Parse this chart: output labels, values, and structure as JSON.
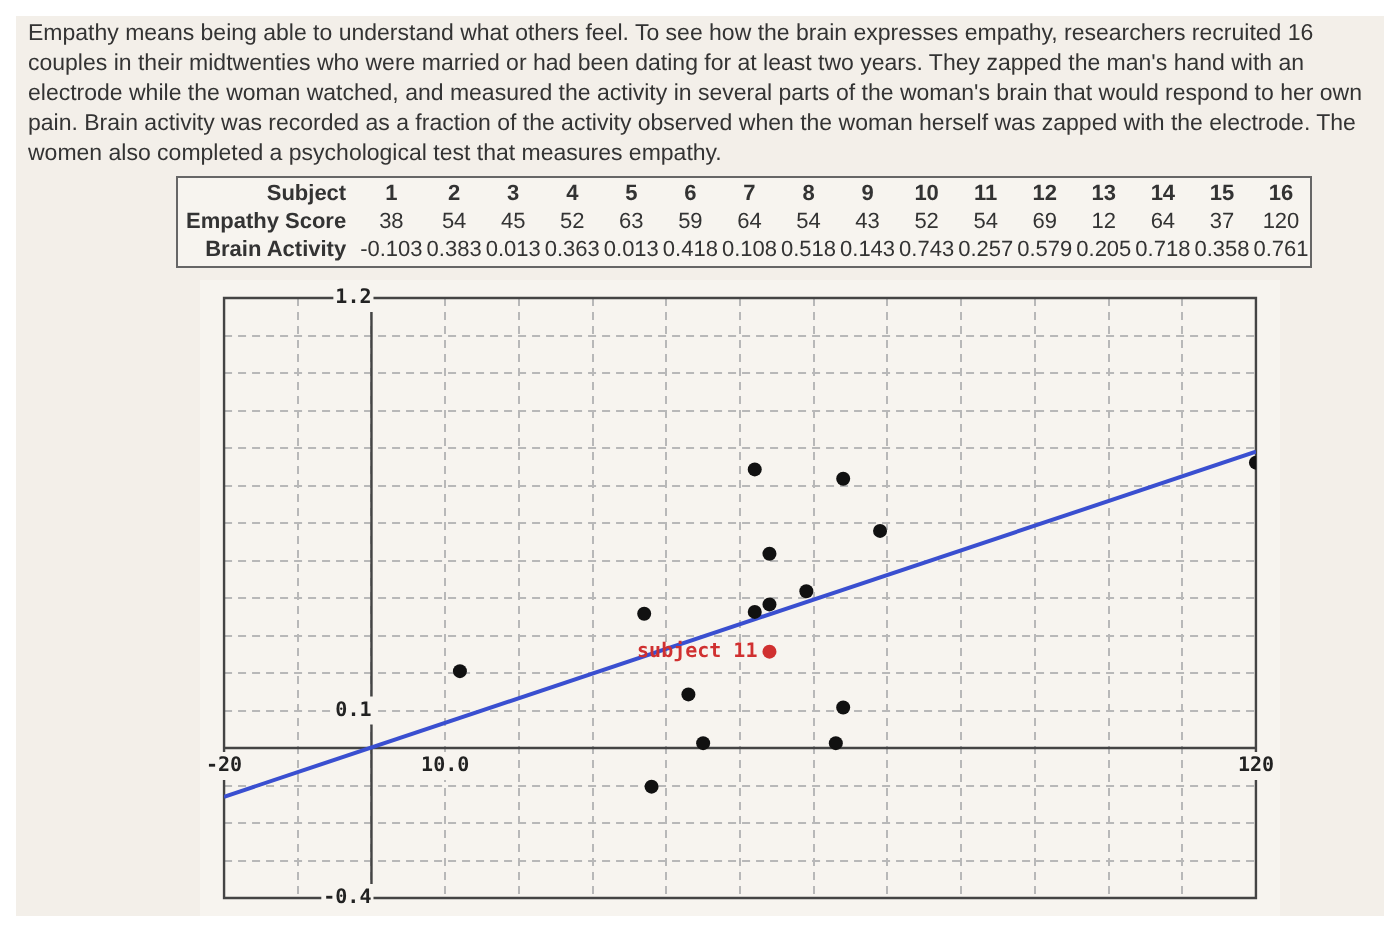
{
  "chart_data": {
    "type": "scatter",
    "subtitle": "Empathy means being able to understand what others feel. To see how the brain expresses empathy, researchers recruited 16 couples in their midtwenties who were married or had been dating for at least two years. They zapped the man's hand with an electrode while the woman watched, and measured the activity in several parts of the woman's brain that would respond to her own pain. Brain activity was recorded as a fraction of the activity observed when the woman herself was zapped with the electrode. The women also completed a psychological test that measures empathy.",
    "series": [
      {
        "colors": [
          "#111111",
          "#111111",
          "#111111",
          "#111111",
          "#111111",
          "#111111",
          "#111111",
          "#111111",
          "#111111",
          "#111111",
          "#d03030",
          "#111111",
          "#111111",
          "#111111",
          "#111111",
          "#111111"
        ],
        "x": [
          38,
          54,
          45,
          52,
          63,
          59,
          64,
          54,
          43,
          52,
          54,
          69,
          12,
          64,
          37,
          120
        ],
        "values": [
          -0.103,
          0.383,
          0.013,
          0.363,
          0.013,
          0.418,
          0.108,
          0.518,
          0.143,
          0.743,
          0.257,
          0.579,
          0.205,
          0.718,
          0.358,
          0.761
        ]
      },
      {
        "type": "line",
        "color": "#3a4fd0",
        "marker": "none",
        "x": [
          -20,
          120
        ],
        "values": [
          -0.13,
          0.79
        ]
      }
    ],
    "annotations": [
      "Subject",
      "1",
      "2",
      "3",
      "4",
      "5",
      "6",
      "7",
      "8",
      "9",
      "10",
      "11",
      "12",
      "13",
      "14",
      "15",
      "16",
      "Empathy Score",
      "38",
      "54",
      "45",
      "52",
      "63",
      "59",
      "64",
      "54",
      "43",
      "52",
      "54",
      "69",
      "12",
      "64",
      "37",
      "120",
      "Brain Activity",
      "-0.103",
      "0.383",
      "0.013",
      "0.363",
      "0.013",
      "0.418",
      "0.108",
      "0.518",
      "0.143",
      "0.743",
      "0.257",
      "0.579",
      "0.205",
      "0.718",
      "0.358",
      "0.761",
      {
        "text": "subject 11",
        "x": 54,
        "y": 0.257
      }
    ],
    "xlim": [
      -20,
      120
    ],
    "xticks": [
      -20,
      {
        "value": -10,
        "label": null
      },
      {
        "value": 0,
        "label": null
      },
      {
        "value": 10,
        "label": "10.0"
      },
      {
        "value": 20,
        "label": null
      },
      {
        "value": 30,
        "label": null
      },
      {
        "value": 40,
        "label": null
      },
      {
        "value": 50,
        "label": null
      },
      {
        "value": 60,
        "label": null
      },
      {
        "value": 70,
        "label": null
      },
      {
        "value": 80,
        "label": null
      },
      {
        "value": 90,
        "label": null
      },
      {
        "value": 100,
        "label": null
      },
      {
        "value": 110,
        "label": null
      },
      120
    ],
    "ylim": [
      -0.4,
      1.2
    ],
    "yticks": [
      -0.4,
      {
        "value": -0.3,
        "label": null
      },
      {
        "value": -0.2,
        "label": null
      },
      {
        "value": -0.1,
        "label": null
      },
      {
        "value": 0,
        "label": null
      },
      0.1,
      {
        "value": 0.2,
        "label": null
      },
      {
        "value": 0.3,
        "label": null
      },
      {
        "value": 0.4,
        "label": null
      },
      {
        "value": 0.5,
        "label": null
      },
      {
        "value": 0.6,
        "label": null
      },
      {
        "value": 0.7,
        "label": null
      },
      {
        "value": 0.8,
        "label": null
      },
      {
        "value": 0.9,
        "label": null
      },
      {
        "value": 1,
        "label": null
      },
      {
        "value": 1.1,
        "label": null
      },
      1.2
    ],
    "grid": true,
    "marker": "circle",
    "legend": false
  }
}
